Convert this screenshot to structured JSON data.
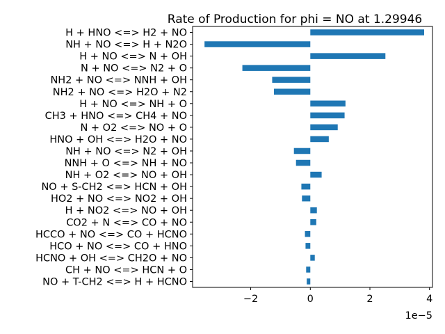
{
  "chart_data": {
    "type": "bar",
    "orientation": "horizontal",
    "title": "Rate of Production for phi = NO at 1.29946",
    "xlabel": "",
    "ylabel": "",
    "x_offset_label": "1e−5",
    "xlim": [
      -3.95,
      4.1
    ],
    "x_ticks": [
      -2,
      0,
      2,
      4
    ],
    "x_tick_labels": [
      "−2",
      "0",
      "2",
      "4"
    ],
    "grid": false,
    "legend": "none",
    "bar_color": "#1f77b4",
    "categories": [
      "H + HNO <=> H2 + NO",
      "NH + NO <=> H + N2O",
      "H + NO <=> N + OH",
      "N + NO <=> N2 + O",
      "NH2 + NO <=> NNH + OH",
      "NH2 + NO <=> H2O + N2",
      "H + NO <=> NH + O",
      "CH3 + HNO <=> CH4 + NO",
      "N + O2 <=> NO + O",
      "HNO + OH <=> H2O + NO",
      "NH + NO <=> N2 + OH",
      "NNH + O <=> NH + NO",
      "NH + O2 <=> NO + OH",
      "NO + S-CH2 <=> HCN + OH",
      "HO2 + NO <=> NO2 + OH",
      "H + NO2 <=> NO + OH",
      "CO2 + N <=> CO + NO",
      "HCCO + NO <=> CO + HCNO",
      "HCO + NO <=> CO + HNO",
      "HCNO + OH <=> CH2O + NO",
      "CH + NO <=> HCN + O",
      "NO + T-CH2 <=> H + HCNO"
    ],
    "values": [
      3.82,
      -3.55,
      2.52,
      -2.28,
      -1.28,
      -1.22,
      1.18,
      1.15,
      0.92,
      0.62,
      -0.55,
      -0.48,
      0.38,
      -0.3,
      -0.28,
      0.22,
      0.2,
      -0.18,
      -0.16,
      0.15,
      -0.14,
      -0.12
    ]
  }
}
